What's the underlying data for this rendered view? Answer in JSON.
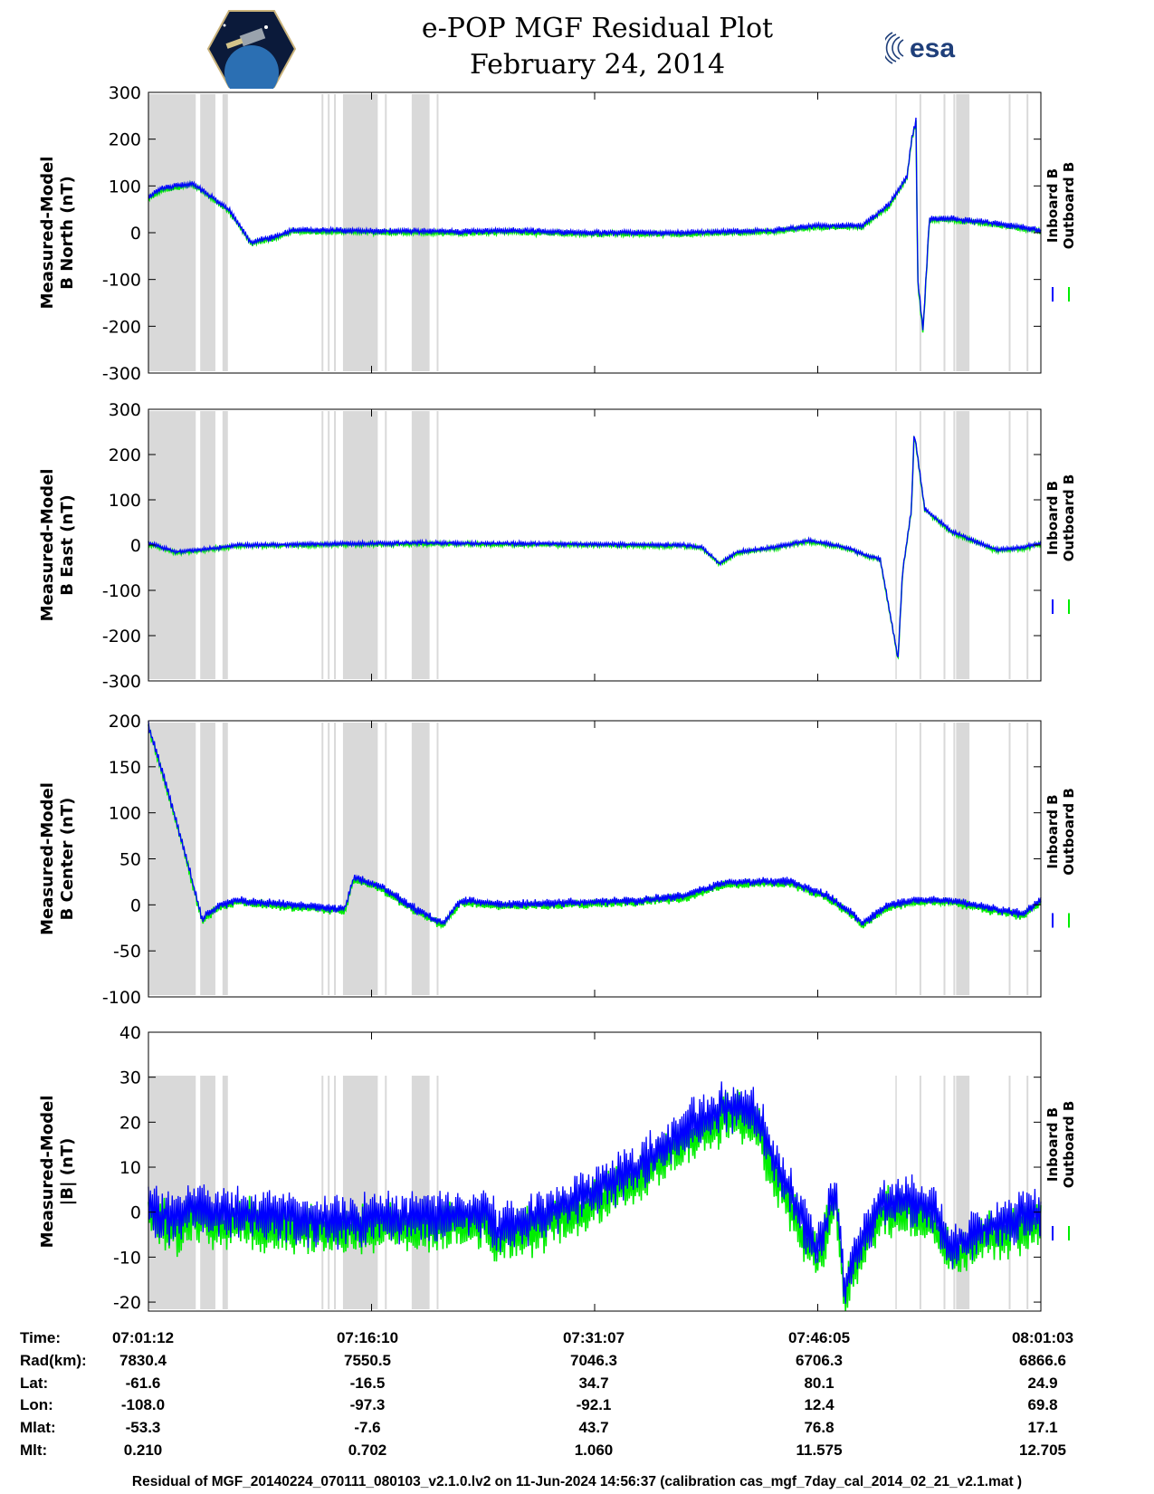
{
  "header": {
    "title_line1": "e-POP MGF Residual Plot",
    "title_line2": "February 24, 2014",
    "logos": [
      "cassiope-mission-logo",
      "esa-logo"
    ],
    "esa_text": "esa"
  },
  "colors": {
    "inboard": "#0000ff",
    "outboard": "#00ee00",
    "gap_shading": "#d9d9d9"
  },
  "chart_data": [
    {
      "type": "line",
      "ylabel": [
        "Measured-Model",
        "B North (nT)"
      ],
      "ylim": [
        -300,
        300
      ],
      "yticks": [
        -300,
        -200,
        -100,
        0,
        100,
        200,
        300
      ],
      "legend": [
        "Inboard B",
        "Outboard B"
      ],
      "series_shape": [
        [
          0.0,
          75
        ],
        [
          0.015,
          95
        ],
        [
          0.05,
          105
        ],
        [
          0.09,
          50
        ],
        [
          0.115,
          -20
        ],
        [
          0.14,
          -10
        ],
        [
          0.16,
          5
        ],
        [
          0.2,
          5
        ],
        [
          0.35,
          2
        ],
        [
          0.4,
          5
        ],
        [
          0.45,
          2
        ],
        [
          0.5,
          0
        ],
        [
          0.55,
          0
        ],
        [
          0.6,
          0
        ],
        [
          0.7,
          5
        ],
        [
          0.75,
          15
        ],
        [
          0.8,
          15
        ],
        [
          0.83,
          60
        ],
        [
          0.85,
          120
        ],
        [
          0.855,
          200
        ],
        [
          0.86,
          240
        ],
        [
          0.862,
          -100
        ],
        [
          0.868,
          -210
        ],
        [
          0.875,
          30
        ],
        [
          0.9,
          30
        ],
        [
          0.95,
          20
        ],
        [
          1.0,
          5
        ]
      ],
      "noise": 8
    },
    {
      "type": "line",
      "ylabel": [
        "Measured-Model",
        "B East (nT)"
      ],
      "ylim": [
        -300,
        300
      ],
      "yticks": [
        -300,
        -200,
        -100,
        0,
        100,
        200,
        300
      ],
      "legend": [
        "Inboard B",
        "Outboard B"
      ],
      "series_shape": [
        [
          0.0,
          5
        ],
        [
          0.015,
          -5
        ],
        [
          0.03,
          -15
        ],
        [
          0.06,
          -10
        ],
        [
          0.1,
          0
        ],
        [
          0.3,
          5
        ],
        [
          0.5,
          2
        ],
        [
          0.6,
          0
        ],
        [
          0.62,
          -5
        ],
        [
          0.64,
          -40
        ],
        [
          0.66,
          -15
        ],
        [
          0.7,
          -5
        ],
        [
          0.74,
          10
        ],
        [
          0.77,
          0
        ],
        [
          0.79,
          -10
        ],
        [
          0.8,
          -20
        ],
        [
          0.82,
          -30
        ],
        [
          0.84,
          -250
        ],
        [
          0.845,
          -60
        ],
        [
          0.855,
          80
        ],
        [
          0.858,
          250
        ],
        [
          0.87,
          80
        ],
        [
          0.9,
          30
        ],
        [
          0.95,
          -10
        ],
        [
          0.98,
          -5
        ],
        [
          1.0,
          5
        ]
      ],
      "noise": 6
    },
    {
      "type": "line",
      "ylabel": [
        "Measured-Model",
        "B Center (nT)"
      ],
      "ylim": [
        -100,
        200
      ],
      "yticks": [
        -100,
        -50,
        0,
        50,
        100,
        150,
        200
      ],
      "legend": [
        "Inboard B",
        "Outboard B"
      ],
      "series_shape": [
        [
          0.0,
          195
        ],
        [
          0.02,
          130
        ],
        [
          0.04,
          60
        ],
        [
          0.06,
          -15
        ],
        [
          0.08,
          0
        ],
        [
          0.1,
          5
        ],
        [
          0.22,
          -5
        ],
        [
          0.23,
          30
        ],
        [
          0.26,
          20
        ],
        [
          0.3,
          -5
        ],
        [
          0.33,
          -20
        ],
        [
          0.35,
          5
        ],
        [
          0.4,
          0
        ],
        [
          0.55,
          5
        ],
        [
          0.6,
          10
        ],
        [
          0.65,
          25
        ],
        [
          0.72,
          25
        ],
        [
          0.76,
          10
        ],
        [
          0.79,
          -10
        ],
        [
          0.8,
          -20
        ],
        [
          0.83,
          0
        ],
        [
          0.86,
          5
        ],
        [
          0.9,
          5
        ],
        [
          0.95,
          -5
        ],
        [
          0.98,
          -10
        ],
        [
          1.0,
          5
        ]
      ],
      "noise": 6
    },
    {
      "type": "line",
      "ylabel": [
        "Measured-Model",
        "|B| (nT)"
      ],
      "ylim": [
        -22,
        40
      ],
      "yticks": [
        -20,
        -10,
        0,
        10,
        20,
        30,
        40
      ],
      "legend": [
        "Inboard B",
        "Outboard B"
      ],
      "series_shape": [
        [
          0.0,
          2
        ],
        [
          0.01,
          0
        ],
        [
          0.03,
          -2
        ],
        [
          0.05,
          2
        ],
        [
          0.07,
          0
        ],
        [
          0.1,
          0
        ],
        [
          0.2,
          -2
        ],
        [
          0.3,
          -1
        ],
        [
          0.38,
          0
        ],
        [
          0.39,
          -4
        ],
        [
          0.45,
          0
        ],
        [
          0.5,
          5
        ],
        [
          0.55,
          10
        ],
        [
          0.6,
          18
        ],
        [
          0.65,
          24
        ],
        [
          0.68,
          22
        ],
        [
          0.7,
          12
        ],
        [
          0.74,
          -5
        ],
        [
          0.75,
          -9
        ],
        [
          0.77,
          5
        ],
        [
          0.78,
          -17
        ],
        [
          0.79,
          -10
        ],
        [
          0.82,
          2
        ],
        [
          0.85,
          3
        ],
        [
          0.88,
          0
        ],
        [
          0.9,
          -8
        ],
        [
          0.93,
          -4
        ],
        [
          0.96,
          -2
        ],
        [
          1.0,
          0
        ]
      ],
      "noise": 7
    }
  ],
  "gap_bands": [
    [
      0.0,
      0.053
    ],
    [
      0.058,
      0.075
    ],
    [
      0.083,
      0.089
    ],
    [
      0.194,
      0.196
    ],
    [
      0.201,
      0.203
    ],
    [
      0.208,
      0.21
    ],
    [
      0.218,
      0.257
    ],
    [
      0.265,
      0.267
    ],
    [
      0.295,
      0.315
    ],
    [
      0.323,
      0.325
    ],
    [
      0.837,
      0.838
    ],
    [
      0.864,
      0.866
    ],
    [
      0.891,
      0.893
    ],
    [
      0.902,
      0.904
    ],
    [
      0.905,
      0.92
    ],
    [
      0.964,
      0.966
    ],
    [
      0.984,
      0.986
    ]
  ],
  "xticks_frac": [
    0.0,
    0.25,
    0.5,
    0.75,
    1.0
  ],
  "orbit_table": {
    "labels": [
      "Time:",
      "Rad(km):",
      "Lat:",
      "Lon:",
      "Mlat:",
      "Mlt:"
    ],
    "columns": [
      [
        "07:01:12",
        "7830.4",
        "-61.6",
        "-108.0",
        "-53.3",
        "0.210"
      ],
      [
        "07:16:10",
        "7550.5",
        "-16.5",
        "-97.3",
        "-7.6",
        "0.702"
      ],
      [
        "07:31:07",
        "7046.3",
        "34.7",
        "-92.1",
        "43.7",
        "1.060"
      ],
      [
        "07:46:05",
        "6706.3",
        "80.1",
        "12.4",
        "76.8",
        "11.575"
      ],
      [
        "08:01:03",
        "6866.6",
        "24.9",
        "69.8",
        "17.1",
        "12.705"
      ]
    ]
  },
  "footer": "Residual of MGF_20140224_070111_080103_v2.1.0.lv2 on 11-Jun-2024 14:56:37 (calibration cas_mgf_7day_cal_2014_02_21_v2.1.mat )"
}
